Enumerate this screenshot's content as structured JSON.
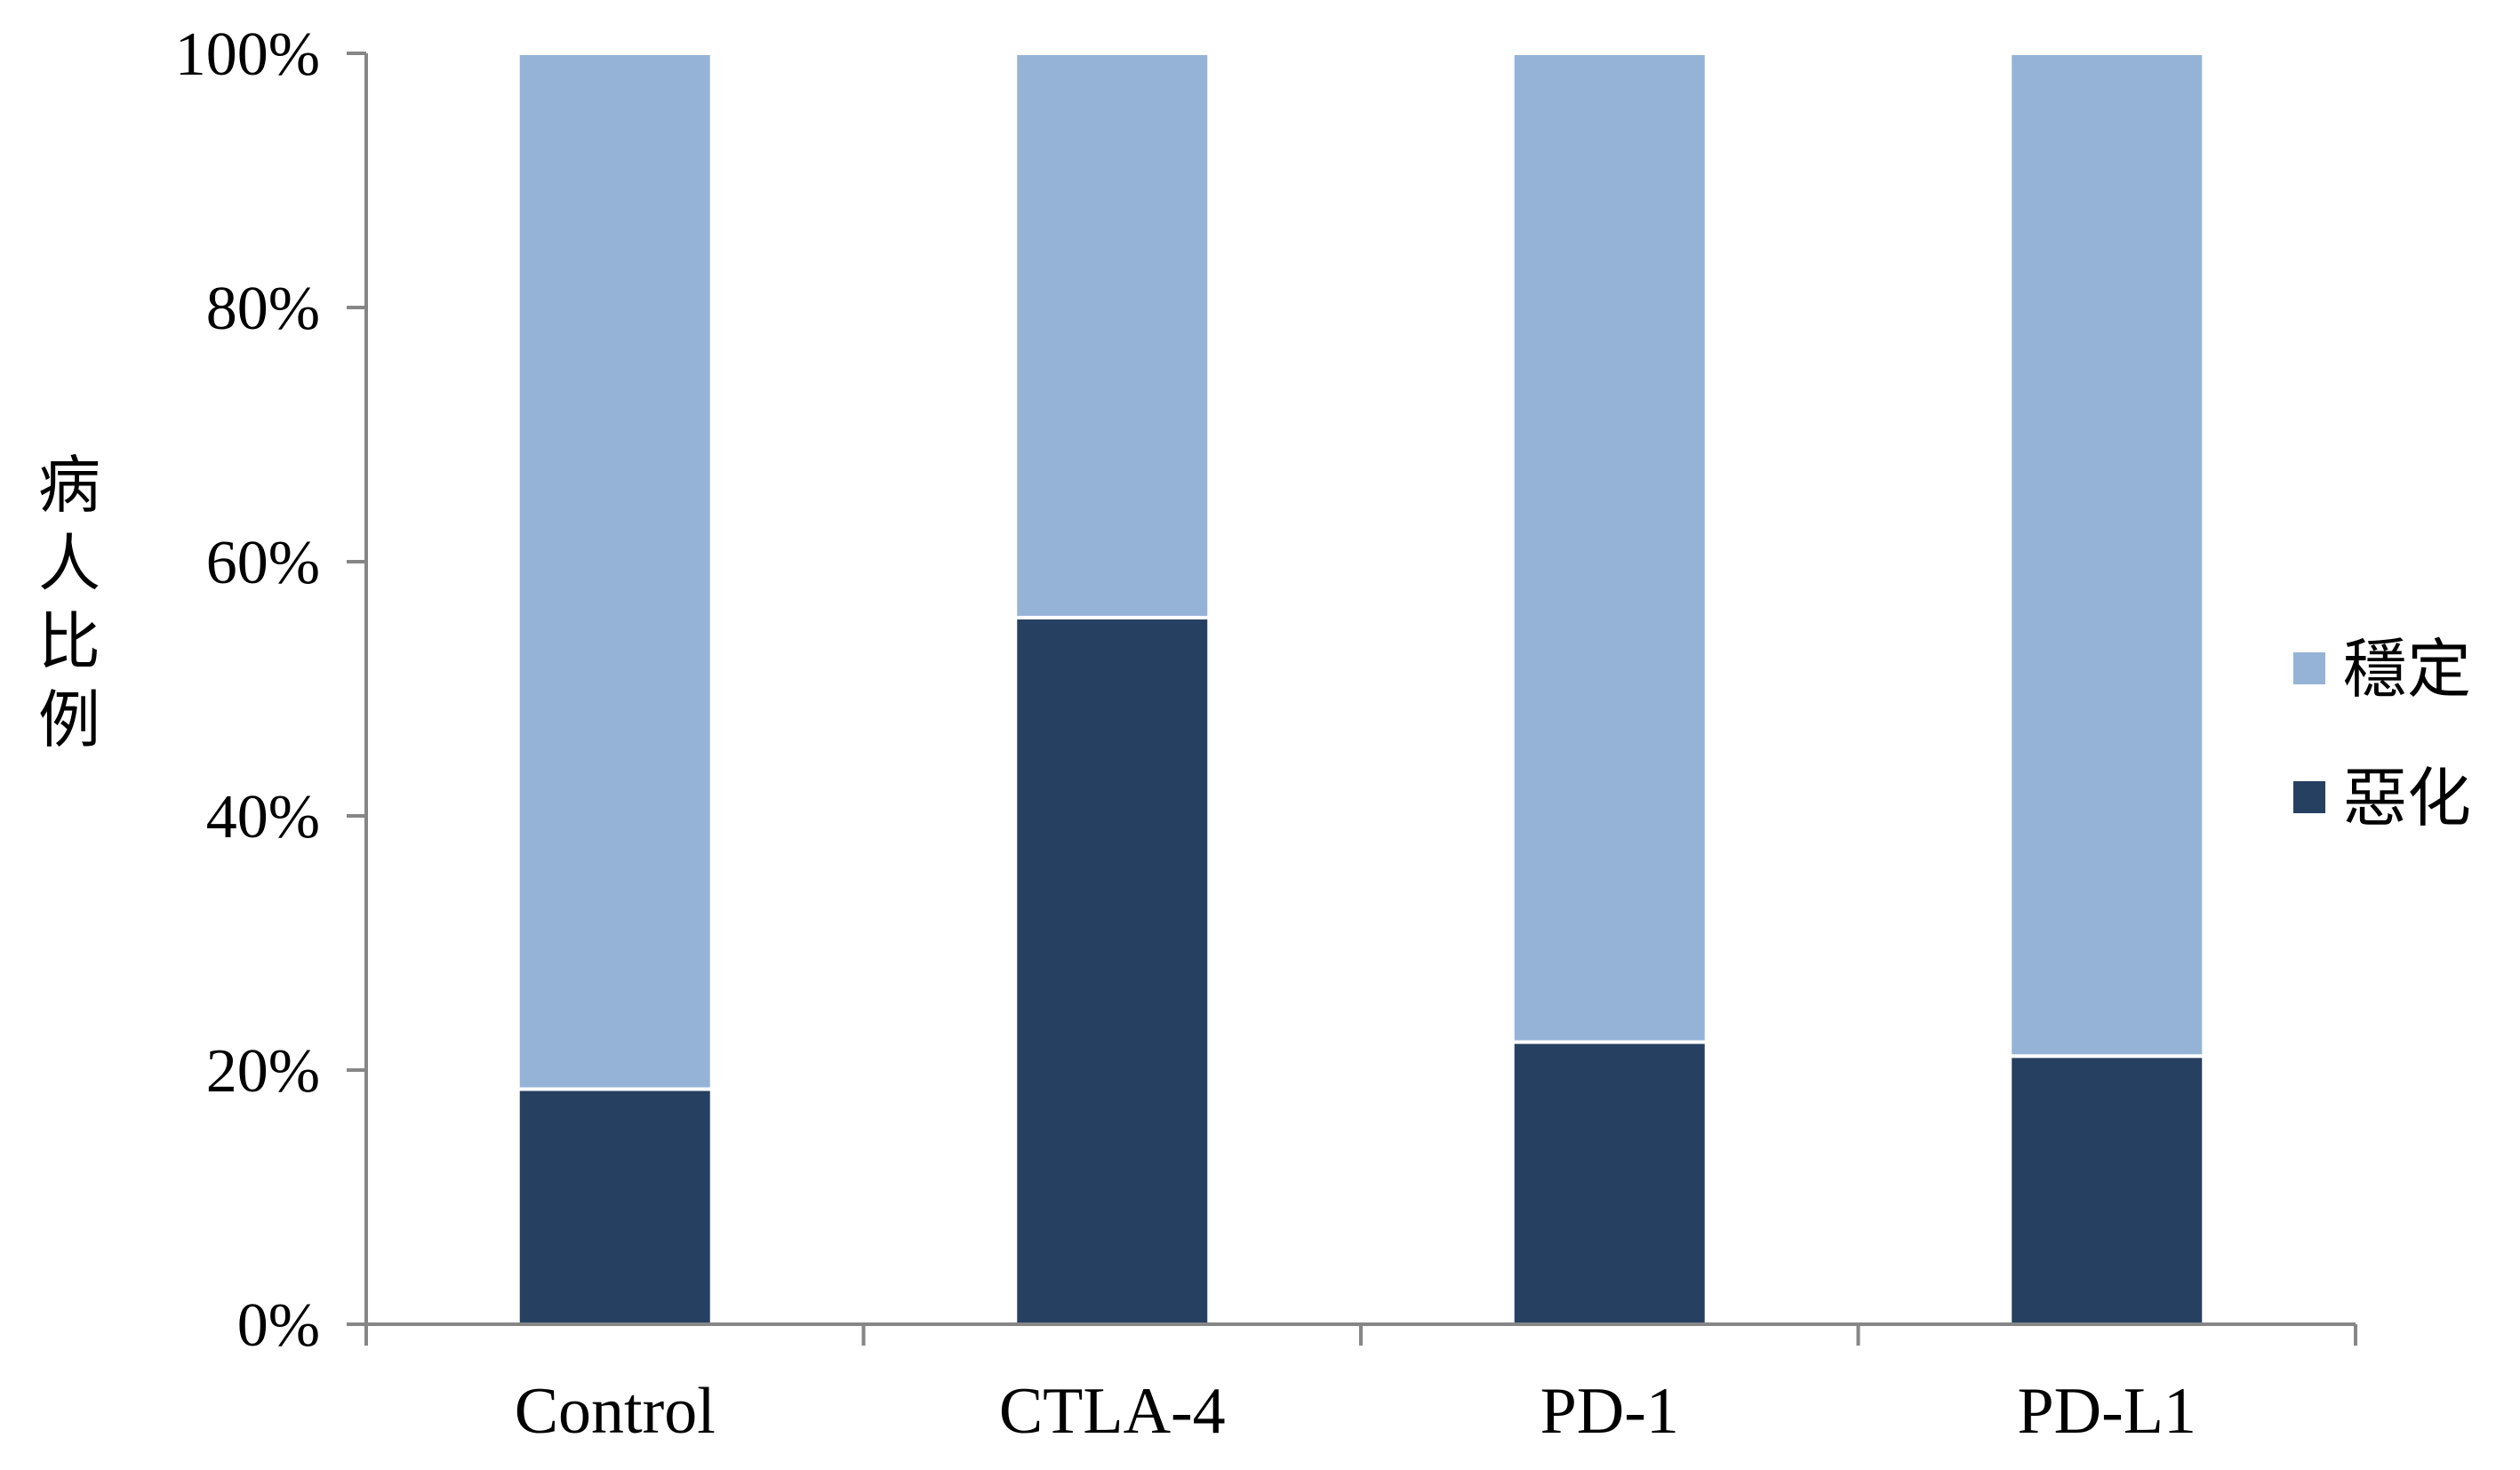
{
  "chart_data": {
    "type": "bar",
    "stacked": true,
    "normalized_percent": true,
    "categories": [
      "Control",
      "CTLA-4",
      "PD-1",
      "PD-L1"
    ],
    "series": [
      {
        "name": "惡化",
        "values": [
          18.5,
          55.6,
          22.2,
          21.1
        ],
        "color": "#264061"
      },
      {
        "name": "穩定",
        "values": [
          81.5,
          44.4,
          77.8,
          78.9
        ],
        "color": "#95b3d7"
      }
    ],
    "ylabel": "病人比例",
    "xlabel": "",
    "title": "",
    "ylim": [
      0,
      100
    ],
    "yticks": [
      0,
      20,
      40,
      60,
      80,
      100
    ],
    "ytick_labels": [
      "0%",
      "20%",
      "40%",
      "60%",
      "80%",
      "100%"
    ],
    "legend": {
      "position": "right",
      "order": [
        "穩定",
        "惡化"
      ]
    },
    "grid": false
  }
}
